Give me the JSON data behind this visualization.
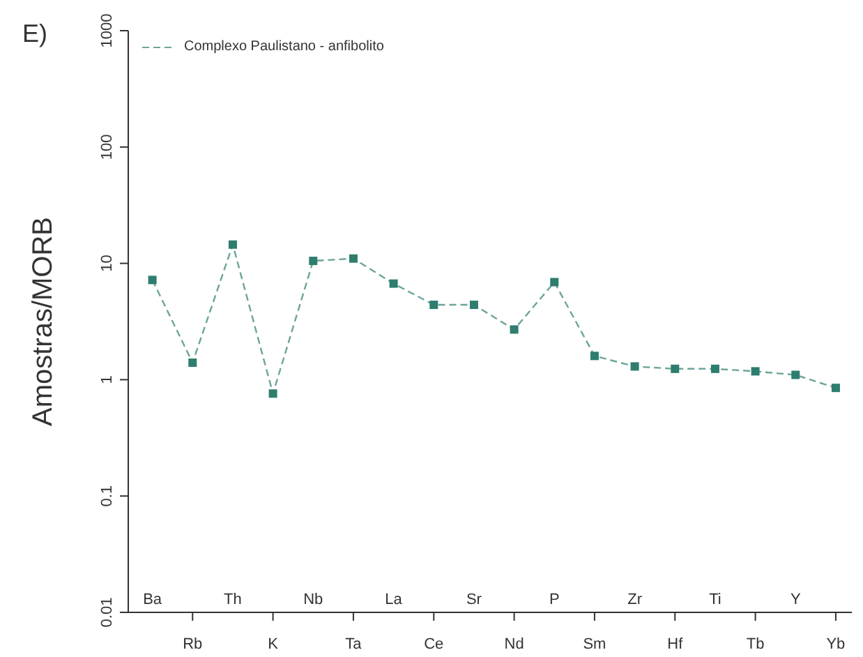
{
  "chart_data": {
    "type": "line",
    "ylabel": "Amostras/MORB",
    "annotations": [
      "E)"
    ],
    "categories": [
      "Ba",
      "Rb",
      "Th",
      "K",
      "Nb",
      "Ta",
      "La",
      "Ce",
      "Sr",
      "Nd",
      "P",
      "Sm",
      "Zr",
      "Hf",
      "Ti",
      "Tb",
      "Y",
      "Yb"
    ],
    "series": [
      {
        "name": "Complexo Paulistano - anfibolito",
        "color": "#2e7d6e",
        "values": [
          7.2,
          1.4,
          14.5,
          0.76,
          10.5,
          11,
          6.7,
          4.4,
          4.4,
          2.7,
          6.9,
          1.6,
          1.3,
          1.24,
          1.24,
          1.18,
          1.1,
          0.85
        ]
      }
    ],
    "log": true,
    "ylim": [
      0.01,
      1000
    ],
    "yticks": [
      0.01,
      0.1,
      1,
      10,
      100,
      1000
    ],
    "grid": false,
    "legend": "top left",
    "marker": "square",
    "line_style": "dashed"
  }
}
